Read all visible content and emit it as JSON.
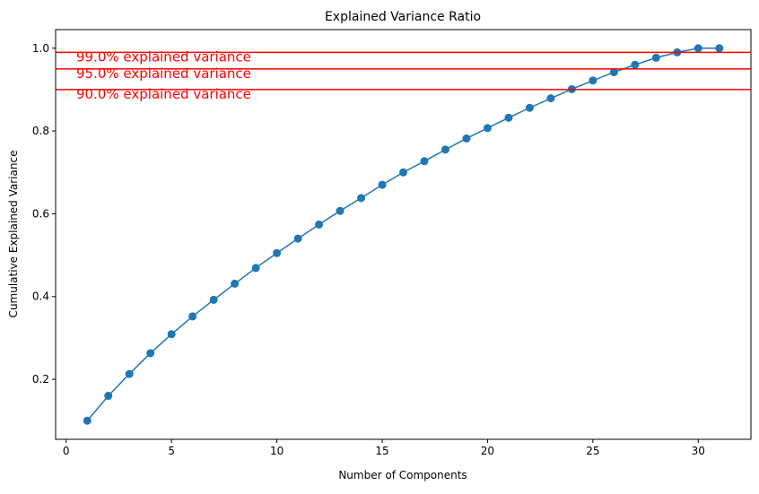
{
  "chart_data": {
    "type": "line",
    "title": "Explained Variance Ratio",
    "xlabel": "Number of Components",
    "ylabel": "Cumulative Explained Variance",
    "xlim": [
      -0.5,
      32.5
    ],
    "ylim": [
      0.055,
      1.045
    ],
    "xticks": [
      0,
      5,
      10,
      15,
      20,
      25,
      30
    ],
    "yticks": [
      0.2,
      0.4,
      0.6,
      0.8,
      1.0
    ],
    "ytick_labels": [
      "0.2",
      "0.4",
      "0.6",
      "0.8",
      "1.0"
    ],
    "grid": false,
    "series": [
      {
        "color": "#1f77b4",
        "marker": "circle",
        "x": [
          1,
          2,
          3,
          4,
          5,
          6,
          7,
          8,
          9,
          10,
          11,
          12,
          13,
          14,
          15,
          16,
          17,
          18,
          19,
          20,
          21,
          22,
          23,
          24,
          25,
          26,
          27,
          28,
          29,
          30,
          31
        ],
        "y": [
          0.1,
          0.16,
          0.213,
          0.263,
          0.309,
          0.352,
          0.392,
          0.431,
          0.469,
          0.505,
          0.54,
          0.574,
          0.607,
          0.638,
          0.67,
          0.7,
          0.727,
          0.755,
          0.782,
          0.807,
          0.832,
          0.856,
          0.879,
          0.901,
          0.922,
          0.942,
          0.96,
          0.977,
          0.99,
          1.0,
          1.0
        ]
      }
    ],
    "reference_lines": [
      {
        "y": 0.99,
        "label": "99.0% explained variance",
        "color": "#ff0000"
      },
      {
        "y": 0.95,
        "label": "95.0% explained variance",
        "color": "#ff0000"
      },
      {
        "y": 0.9,
        "label": "90.0% explained variance",
        "color": "#ff0000"
      }
    ]
  }
}
